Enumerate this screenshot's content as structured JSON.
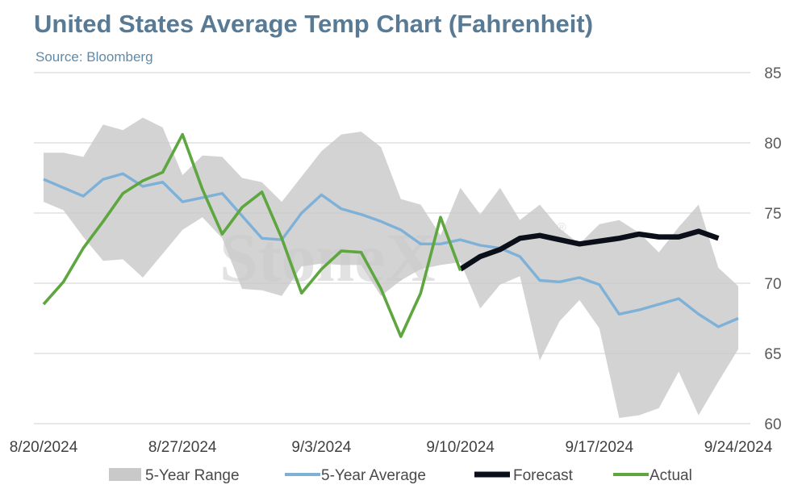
{
  "title": "United States Average Temp Chart (Fahrenheit)",
  "subtitle": "Source: Bloomberg",
  "watermark": "StoneX",
  "watermark_mark": "®",
  "colors": {
    "range": "#c9c9c9",
    "average": "#7eb1d8",
    "forecast": "#0b0f1a",
    "actual": "#5ea63f",
    "grid": "#d9d9d9",
    "title": "#587a94"
  },
  "chart_data": {
    "type": "line",
    "title": "United States Average Temp Chart (Fahrenheit)",
    "x_tick_labels": [
      "8/20/2024",
      "8/27/2024",
      "9/3/2024",
      "9/10/2024",
      "9/17/2024",
      "9/24/2024"
    ],
    "x_tick_index": [
      0,
      7,
      14,
      21,
      28,
      35
    ],
    "ylim": [
      60,
      85
    ],
    "y_ticks": [
      60,
      65,
      70,
      75,
      80,
      85
    ],
    "y_axis_position": "right",
    "grid": true,
    "legend_position": "bottom",
    "x_start": "2024-08-20",
    "range": {
      "name": "5-Year Range",
      "high": [
        79.3,
        79.3,
        79.0,
        81.3,
        80.9,
        81.8,
        81.1,
        77.7,
        79.1,
        79.0,
        77.5,
        77.2,
        75.8,
        77.6,
        79.4,
        80.6,
        80.8,
        79.7,
        76.0,
        75.6,
        73.4,
        76.8,
        74.9,
        76.8,
        74.5,
        75.6,
        73.9,
        72.8,
        74.2,
        74.5,
        73.6,
        72.2,
        74.0,
        75.6,
        71.1,
        69.8
      ],
      "low": [
        75.8,
        75.2,
        73.3,
        71.6,
        71.7,
        70.4,
        72.1,
        73.8,
        74.7,
        73.2,
        69.6,
        69.5,
        69.1,
        71.2,
        71.4,
        71.3,
        71.3,
        69.1,
        70.2,
        71.0,
        71.3,
        71.5,
        68.2,
        69.9,
        70.5,
        64.5,
        67.3,
        68.8,
        66.8,
        60.4,
        60.6,
        61.1,
        63.7,
        60.6,
        63.0,
        65.3
      ]
    },
    "series": [
      {
        "name": "5-Year Average",
        "start_index": 0,
        "values": [
          77.4,
          76.8,
          76.2,
          77.4,
          77.8,
          76.9,
          77.2,
          75.8,
          76.1,
          76.4,
          74.8,
          73.2,
          73.1,
          75.0,
          76.3,
          75.3,
          74.9,
          74.4,
          73.8,
          72.8,
          72.8,
          73.1,
          72.7,
          72.5,
          71.9,
          70.2,
          70.1,
          70.4,
          69.9,
          67.8,
          68.1,
          68.5,
          68.9,
          67.8,
          66.9,
          67.5
        ]
      },
      {
        "name": "Forecast",
        "start_index": 21,
        "values": [
          71.0,
          71.9,
          72.4,
          73.2,
          73.4,
          73.1,
          72.8,
          73.0,
          73.2,
          73.5,
          73.3,
          73.3,
          73.7,
          73.2
        ]
      },
      {
        "name": "Actual",
        "start_index": 0,
        "values": [
          68.5,
          70.1,
          72.5,
          74.4,
          76.4,
          77.3,
          77.9,
          80.6,
          76.7,
          73.5,
          75.4,
          76.5,
          73.2,
          69.3,
          71.0,
          72.3,
          72.2,
          69.6,
          66.2,
          69.3,
          74.7,
          70.9
        ]
      }
    ],
    "legend": [
      {
        "label": "5-Year Range",
        "kind": "area"
      },
      {
        "label": "5-Year Average",
        "kind": "line"
      },
      {
        "label": "Forecast",
        "kind": "line"
      },
      {
        "label": "Actual",
        "kind": "line"
      }
    ]
  }
}
